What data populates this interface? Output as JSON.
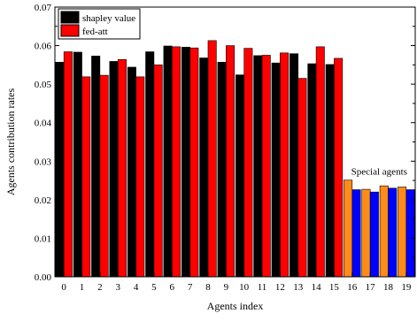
{
  "chart_data": {
    "type": "bar",
    "title": "",
    "xlabel": "Agents index",
    "ylabel": "Agents contribution rates",
    "ylim": [
      0,
      0.07
    ],
    "yticks": [
      "0.00",
      "0.01",
      "0.02",
      "0.03",
      "0.04",
      "0.05",
      "0.06",
      "0.07"
    ],
    "categories": [
      "0",
      "1",
      "2",
      "3",
      "4",
      "5",
      "6",
      "7",
      "8",
      "9",
      "10",
      "11",
      "12",
      "13",
      "14",
      "15",
      "16",
      "17",
      "18",
      "19"
    ],
    "series": [
      {
        "name": "shapley value",
        "color": "#000000",
        "special_color": "#ff8c1a",
        "values": [
          0.0557,
          0.0583,
          0.0573,
          0.0559,
          0.0544,
          0.0584,
          0.0599,
          0.0596,
          0.0568,
          0.0557,
          0.0524,
          0.0574,
          0.0555,
          0.0579,
          0.0553,
          0.0551,
          0.0251,
          0.0227,
          0.0236,
          0.0233
        ]
      },
      {
        "name": "fed-att",
        "color": "#ff0000",
        "special_color": "#0000ff",
        "values": [
          0.0584,
          0.0519,
          0.0523,
          0.0564,
          0.0519,
          0.055,
          0.0597,
          0.0594,
          0.0613,
          0.06,
          0.0593,
          0.0575,
          0.0581,
          0.0515,
          0.0597,
          0.0567,
          0.0226,
          0.022,
          0.023,
          0.0226
        ]
      }
    ],
    "special_from_index": 16,
    "annotation": "Special agents",
    "legend_position": "top-left",
    "grid": false
  }
}
